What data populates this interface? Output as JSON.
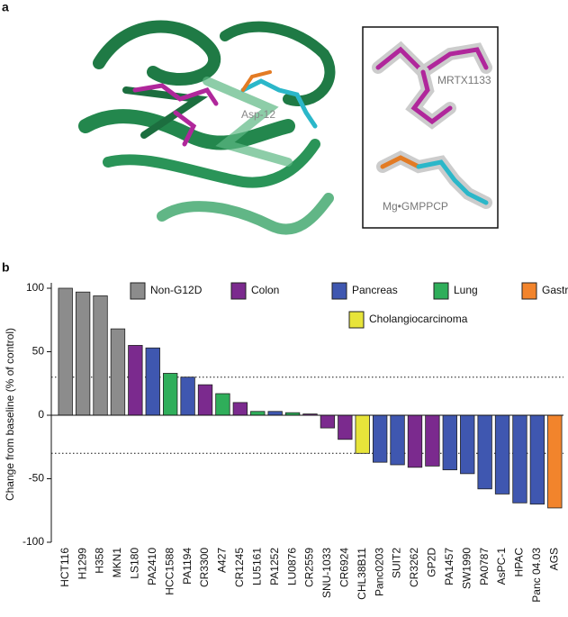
{
  "panels": {
    "a": {
      "label": "a",
      "annotations": [
        "Asp-12",
        "MRTX1133",
        "Mg•GMPPCP"
      ]
    },
    "b": {
      "label": "b"
    }
  },
  "chart_data": {
    "type": "bar",
    "ylabel": "Change from baseline (% of control)",
    "categories": [
      "HCT116",
      "H1299",
      "H358",
      "MKN1",
      "LS180",
      "PA2410",
      "HCC1588",
      "PA1194",
      "CR3300",
      "A427",
      "CR1245",
      "LU5161",
      "PA1252",
      "LU0876",
      "CR2559",
      "SNU-1033",
      "CR6924",
      "CHL38B11",
      "Panc0203",
      "SUIT2",
      "CR3262",
      "GP2D",
      "PA1457",
      "SW1990",
      "PA0787",
      "AsPC-1",
      "HPAC",
      "Panc 04.03",
      "AGS"
    ],
    "values": [
      100,
      97,
      94,
      68,
      55,
      53,
      33,
      30,
      24,
      17,
      10,
      3,
      3,
      2,
      1,
      -10,
      -19,
      -30,
      -37,
      -39,
      -41,
      -40,
      -43,
      -46,
      -58,
      -62,
      -69,
      -70,
      -73
    ],
    "colors": [
      "#8c8c8c",
      "#8c8c8c",
      "#8c8c8c",
      "#8c8c8c",
      "#7b2a8e",
      "#3f57b0",
      "#2fae5a",
      "#3f57b0",
      "#7b2a8e",
      "#2fae5a",
      "#7b2a8e",
      "#2fae5a",
      "#3f57b0",
      "#2fae5a",
      "#7b2a8e",
      "#7b2a8e",
      "#7b2a8e",
      "#e7e43a",
      "#3f57b0",
      "#3f57b0",
      "#7b2a8e",
      "#7b2a8e",
      "#3f57b0",
      "#3f57b0",
      "#3f57b0",
      "#3f57b0",
      "#3f57b0",
      "#3f57b0",
      "#f2842c"
    ],
    "legend": [
      {
        "name": "Non-G12D",
        "color": "#8c8c8c"
      },
      {
        "name": "Colon",
        "color": "#7b2a8e"
      },
      {
        "name": "Pancreas",
        "color": "#3f57b0"
      },
      {
        "name": "Lung",
        "color": "#2fae5a"
      },
      {
        "name": "Gastric",
        "color": "#f2842c"
      },
      {
        "name": "Cholangiocarcinoma",
        "color": "#e7e43a"
      }
    ],
    "hlines": [
      30,
      -30
    ],
    "ylim": [
      -100,
      100
    ],
    "yticks": [
      -100,
      -50,
      0,
      50,
      100
    ]
  }
}
